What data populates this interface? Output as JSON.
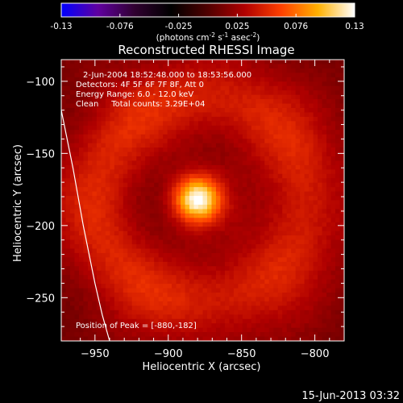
{
  "chart_data": {
    "type": "heatmap",
    "title": "Reconstructed RHESSI Image",
    "xlabel": "Heliocentric X (arcsec)",
    "ylabel": "Heliocentric Y (arcsec)",
    "xlim": [
      -973,
      -780
    ],
    "ylim": [
      -280,
      -85
    ],
    "x_ticks": [
      -950,
      -900,
      -850,
      -800
    ],
    "y_ticks": [
      -100,
      -150,
      -200,
      -250
    ],
    "colorbar": {
      "range": [
        -0.13,
        0.13
      ],
      "ticks": [
        "-0.13",
        "-0.076",
        "-0.025",
        "0.025",
        "0.076",
        "0.13"
      ],
      "unit_label_parts": [
        "(photons cm",
        "-2",
        " s",
        "-1",
        " asec",
        "-2",
        ")"
      ],
      "colors": [
        "#0000ff",
        "#6000a0",
        "#300030",
        "#000000",
        "#500000",
        "#b00000",
        "#ff4000",
        "#ffb000",
        "#ffffff"
      ]
    },
    "info_lines": [
      "2-Jun-2004 18:52:48.000 to 18:53:56.000",
      "Detectors: 4F 5F 6F 7F 8F, Att 0",
      "Energy Range: 6.0 - 12.0 keV",
      "Clean     Total counts: 3.29E+04"
    ],
    "peak_label": "Position of Peak = [-880,-182]",
    "peak": {
      "x": -880,
      "y": -182,
      "value": 0.13
    },
    "background_level": 0.02,
    "ring": {
      "center_x": -878,
      "center_y": -182,
      "radius_arcsec": 70,
      "level": 0.03
    },
    "limb_curve": {
      "color": "#ffffff",
      "points": [
        [
          -973,
          -120
        ],
        [
          -965,
          -160
        ],
        [
          -958,
          -200
        ],
        [
          -950,
          -240
        ],
        [
          -945,
          -262
        ],
        [
          -940,
          -280
        ]
      ]
    }
  },
  "footer": {
    "timestamp": "15-Jun-2013 03:32"
  }
}
